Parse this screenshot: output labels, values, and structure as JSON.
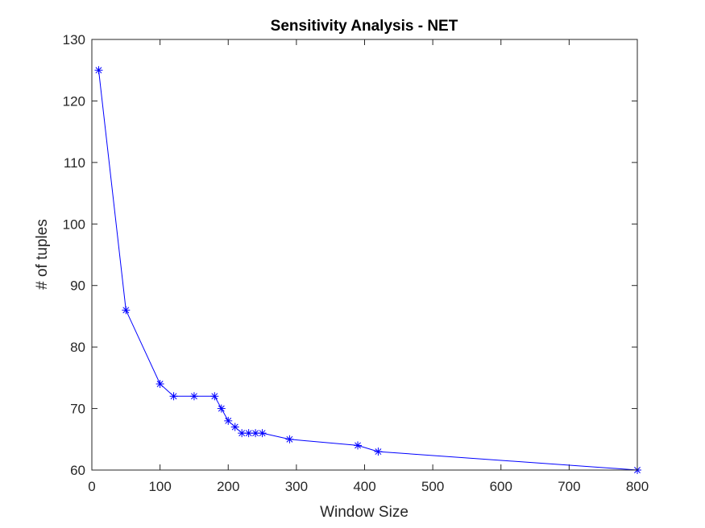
{
  "chart_data": {
    "type": "line",
    "title": "Sensitivity Analysis - NET",
    "xlabel": "Window Size",
    "ylabel": "# of tuples",
    "xlim": [
      0,
      800
    ],
    "ylim": [
      60,
      130
    ],
    "xticks": [
      0,
      100,
      200,
      300,
      400,
      500,
      600,
      700,
      800
    ],
    "yticks": [
      60,
      70,
      80,
      90,
      100,
      110,
      120,
      130
    ],
    "grid": false,
    "marker": "asterisk",
    "series": [
      {
        "name": "NET",
        "color": "#0000ff",
        "x": [
          10,
          50,
          100,
          120,
          150,
          180,
          190,
          200,
          210,
          220,
          230,
          240,
          250,
          290,
          390,
          420,
          800
        ],
        "y": [
          125,
          86,
          74,
          72,
          72,
          72,
          70,
          68,
          67,
          66,
          66,
          66,
          66,
          65,
          64,
          63,
          60
        ]
      }
    ]
  }
}
